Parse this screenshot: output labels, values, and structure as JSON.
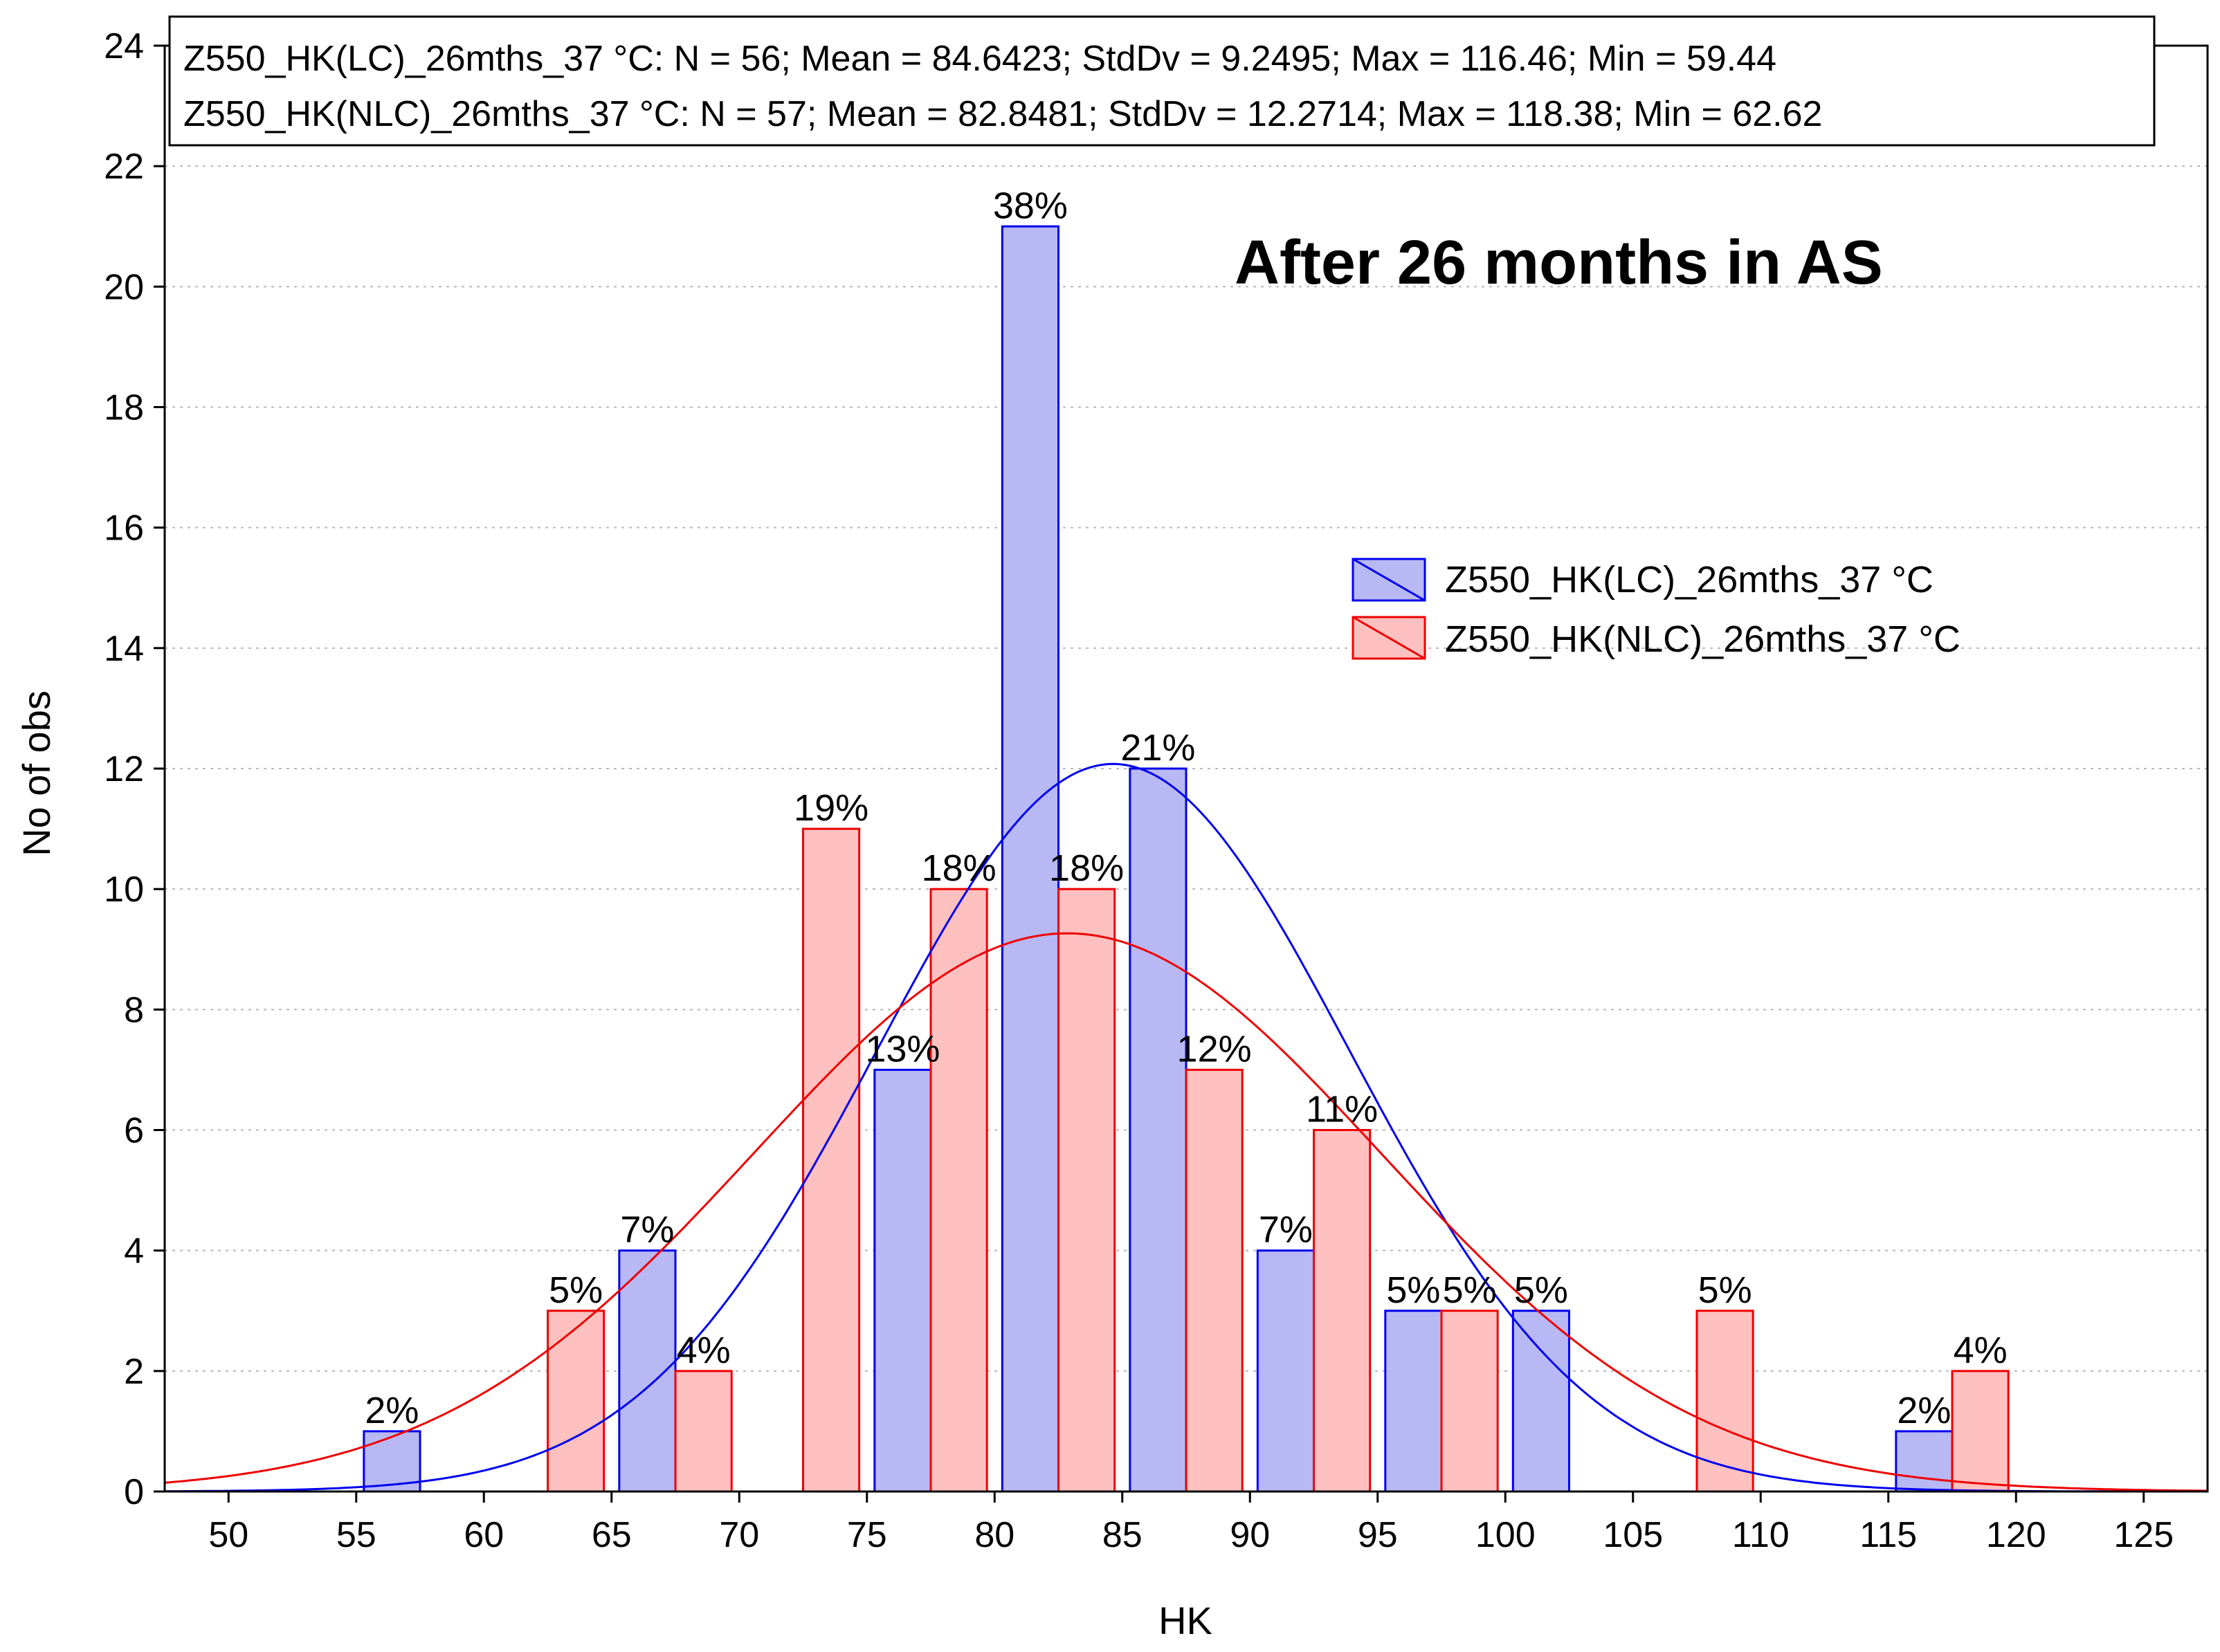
{
  "chart_data": {
    "type": "bar",
    "title": "",
    "xlabel": "HK",
    "ylabel": "No of obs",
    "xlim": [
      47.5,
      127.5
    ],
    "ylim": [
      0,
      24
    ],
    "x_ticks": [
      "50",
      "55",
      "60",
      "65",
      "70",
      "75",
      "80",
      "85",
      "90",
      "95",
      "100",
      "105",
      "110",
      "115",
      "120",
      "125"
    ],
    "y_ticks": [
      "0",
      "2",
      "4",
      "6",
      "8",
      "10",
      "12",
      "14",
      "16",
      "18",
      "20",
      "22",
      "24"
    ],
    "grid": true,
    "annotation": "After 26 months in AS",
    "stats": [
      "Z550_HK(LC)_26mths_37 °C: N = 56; Mean = 84.6423; StdDv = 9.2495; Max = 116.46; Min = 59.44",
      "Z550_HK(NLC)_26mths_37 °C: N = 57; Mean = 82.8481; StdDv = 12.2714; Max = 118.38; Min = 62.62"
    ],
    "legend_position": "center-right",
    "series": [
      {
        "name": "Z550_HK(LC)_26mths_37 °C",
        "fill": "#b8b8f4",
        "stroke": "#0000ee",
        "n": 56,
        "mean": 84.6423,
        "stddev": 9.2495,
        "bins": [
          {
            "start": 55,
            "end": 60,
            "count": 1,
            "label": "2%"
          },
          {
            "start": 60,
            "end": 65,
            "count": 0,
            "label": ""
          },
          {
            "start": 65,
            "end": 70,
            "count": 4,
            "label": "7%"
          },
          {
            "start": 70,
            "end": 75,
            "count": 0,
            "label": ""
          },
          {
            "start": 75,
            "end": 80,
            "count": 7,
            "label": "13%"
          },
          {
            "start": 80,
            "end": 85,
            "count": 21,
            "label": "38%"
          },
          {
            "start": 85,
            "end": 90,
            "count": 12,
            "label": "21%"
          },
          {
            "start": 90,
            "end": 95,
            "count": 4,
            "label": "7%"
          },
          {
            "start": 95,
            "end": 100,
            "count": 3,
            "label": "5%"
          },
          {
            "start": 100,
            "end": 105,
            "count": 3,
            "label": "5%"
          },
          {
            "start": 105,
            "end": 110,
            "count": 0,
            "label": ""
          },
          {
            "start": 110,
            "end": 115,
            "count": 0,
            "label": ""
          },
          {
            "start": 115,
            "end": 120,
            "count": 1,
            "label": "2%"
          }
        ]
      },
      {
        "name": "Z550_HK(NLC)_26mths_37 °C",
        "fill": "#ffc0c0",
        "stroke": "#ee0000",
        "n": 57,
        "mean": 82.8481,
        "stddev": 12.2714,
        "bins": [
          {
            "start": 60,
            "end": 65,
            "count": 3,
            "label": "5%"
          },
          {
            "start": 65,
            "end": 70,
            "count": 2,
            "label": "4%"
          },
          {
            "start": 70,
            "end": 75,
            "count": 11,
            "label": "19%"
          },
          {
            "start": 75,
            "end": 80,
            "count": 10,
            "label": "18%"
          },
          {
            "start": 80,
            "end": 85,
            "count": 10,
            "label": "18%"
          },
          {
            "start": 85,
            "end": 90,
            "count": 7,
            "label": "12%"
          },
          {
            "start": 90,
            "end": 95,
            "count": 6,
            "label": "11%"
          },
          {
            "start": 95,
            "end": 100,
            "count": 3,
            "label": "5%"
          },
          {
            "start": 100,
            "end": 105,
            "count": 0,
            "label": ""
          },
          {
            "start": 105,
            "end": 110,
            "count": 3,
            "label": "5%"
          },
          {
            "start": 110,
            "end": 115,
            "count": 0,
            "label": ""
          },
          {
            "start": 115,
            "end": 120,
            "count": 2,
            "label": "4%"
          }
        ]
      }
    ]
  }
}
